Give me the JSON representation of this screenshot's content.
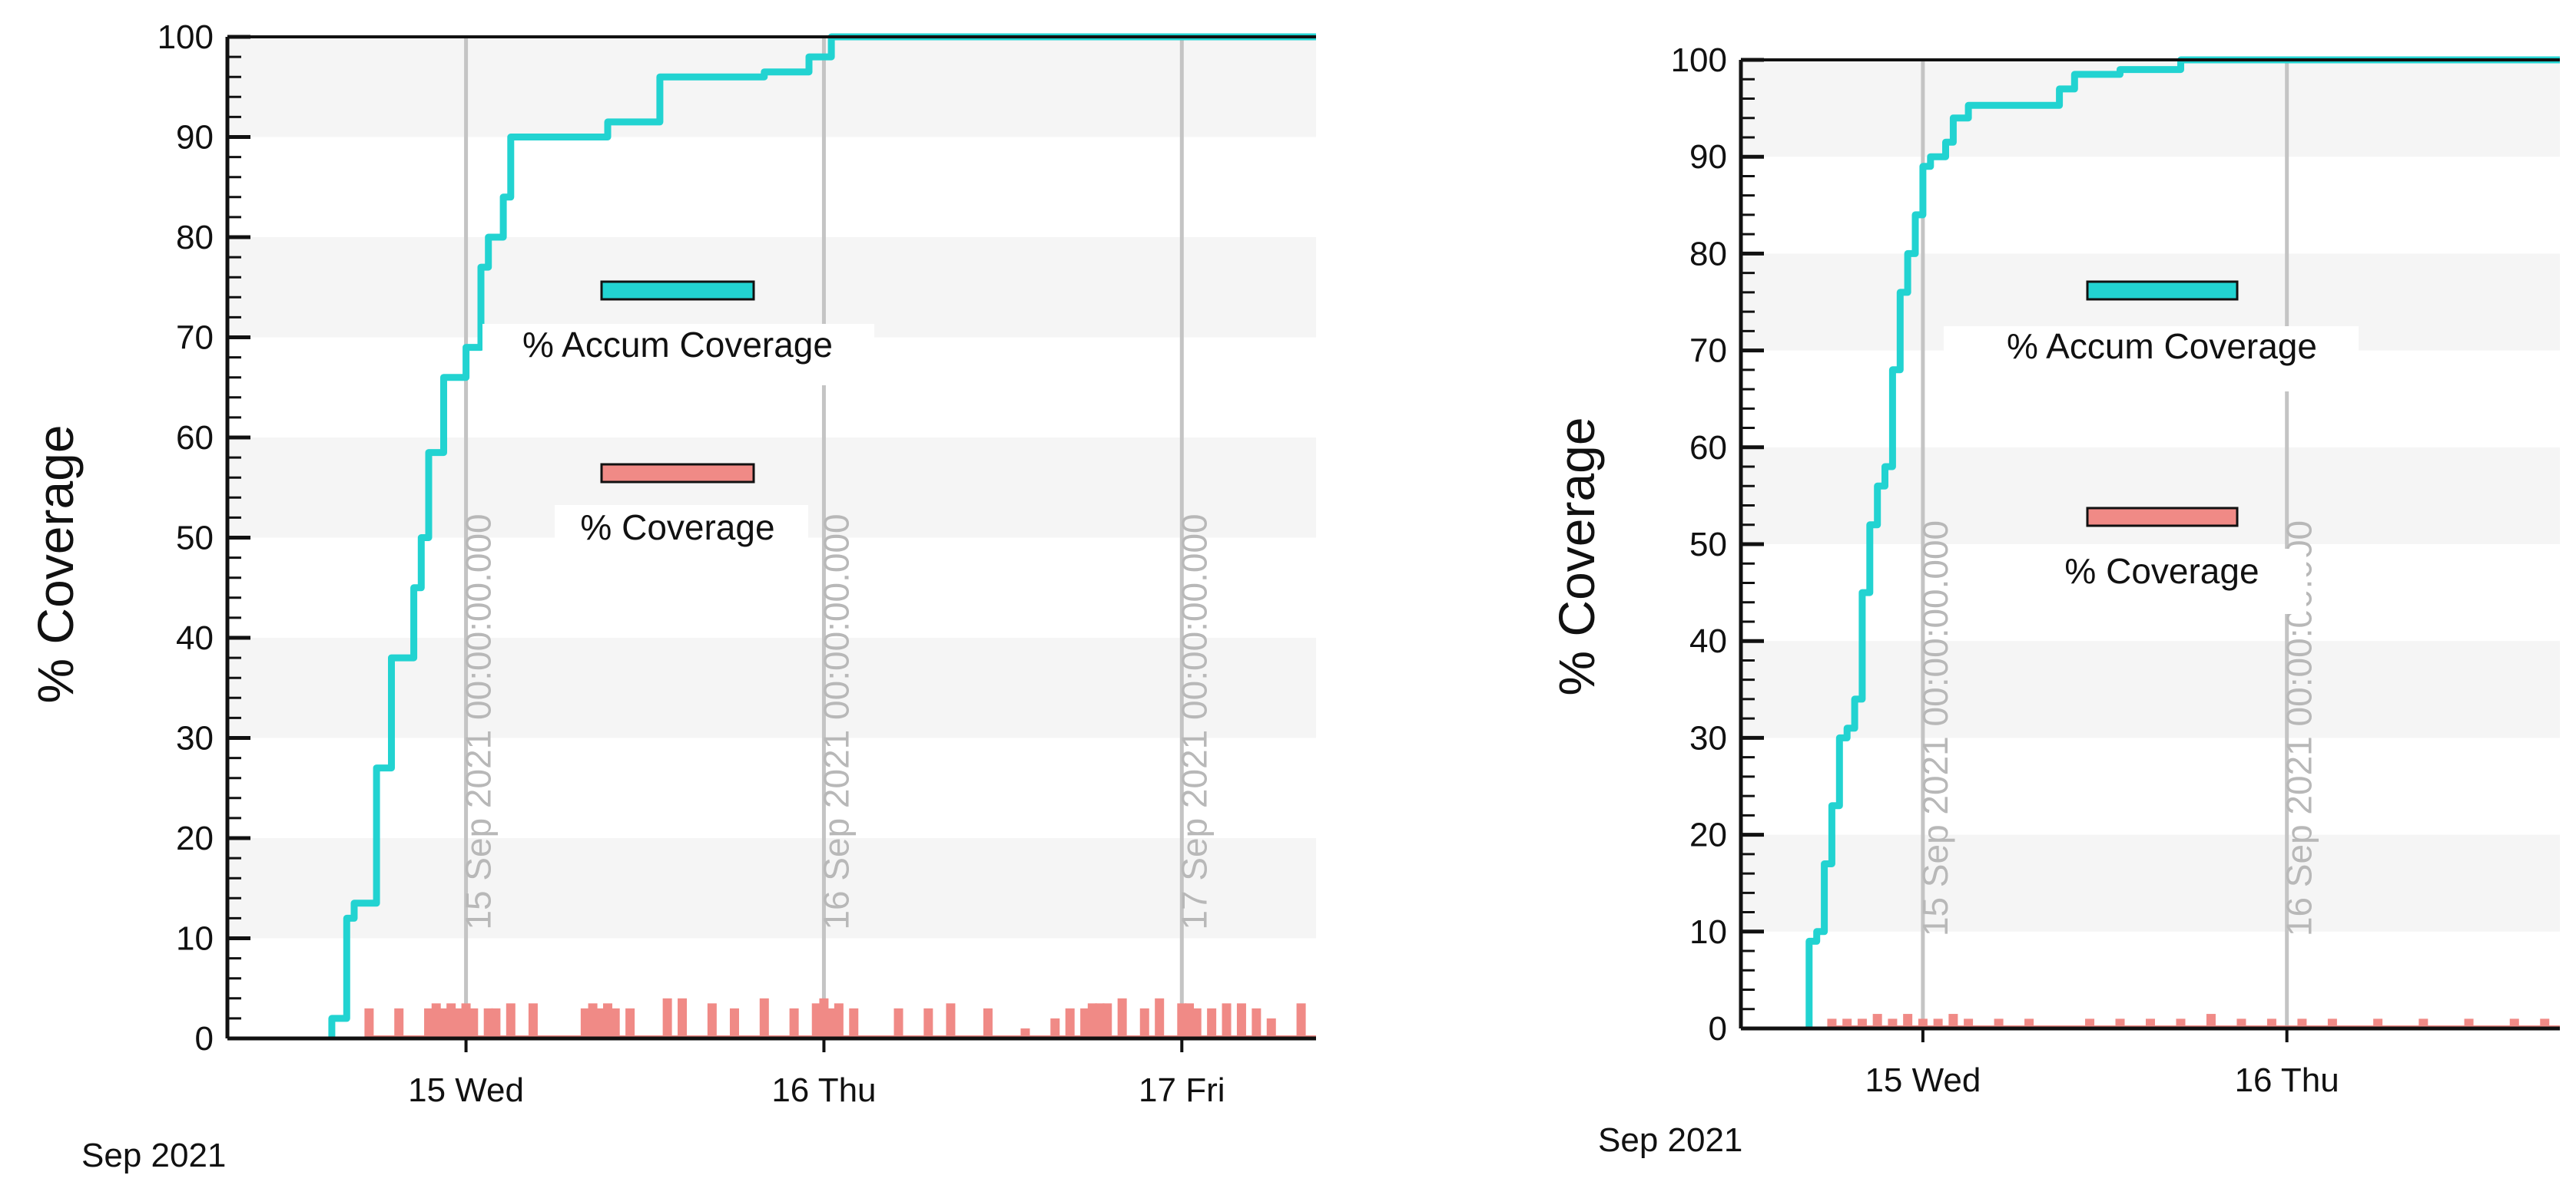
{
  "colors": {
    "accum": "#22d3d1",
    "coverage": "#f08a86",
    "band": "#f5f5f5",
    "vline": "#c4c4c4",
    "axis": "#111111",
    "vline_text": "#b8b8b8"
  },
  "chart_data": [
    {
      "type": "line",
      "ylabel": "% Coverage",
      "xlabel": "",
      "ylim": [
        0,
        100
      ],
      "y_ticks": [
        "0",
        "10",
        "20",
        "30",
        "40",
        "50",
        "60",
        "70",
        "80",
        "90",
        "100"
      ],
      "x_domain": [
        "2021-09-14T08:00",
        "2021-09-17T09:00"
      ],
      "x_ticks": [
        {
          "t": "2021-09-15T00:00",
          "label": "15 Wed"
        },
        {
          "t": "2021-09-16T00:00",
          "label": "16 Thu"
        },
        {
          "t": "2021-09-17T00:00",
          "label": "17 Fri"
        }
      ],
      "x_group_label": "Sep 2021",
      "date_lines": [
        {
          "t": "2021-09-15T00:00",
          "label": "15 Sep 2021 00:00:00.000"
        },
        {
          "t": "2021-09-16T00:00",
          "label": "16 Sep 2021 00:00:00.000"
        },
        {
          "t": "2021-09-17T00:00",
          "label": "17 Sep 2021 00:00:00.000"
        }
      ],
      "grid": "alternating horizontal bands",
      "legend_placement": "center",
      "series": [
        {
          "name": "% Accum Coverage",
          "style": "step-line",
          "points": [
            [
              "2021-09-14T15:00",
              0
            ],
            [
              "2021-09-14T15:00",
              2
            ],
            [
              "2021-09-14T16:00",
              2
            ],
            [
              "2021-09-14T16:00",
              12
            ],
            [
              "2021-09-14T16:30",
              12
            ],
            [
              "2021-09-14T16:30",
              13.5
            ],
            [
              "2021-09-14T18:00",
              13.5
            ],
            [
              "2021-09-14T18:00",
              27
            ],
            [
              "2021-09-14T19:00",
              27
            ],
            [
              "2021-09-14T19:00",
              38
            ],
            [
              "2021-09-14T20:30",
              38
            ],
            [
              "2021-09-14T20:30",
              45
            ],
            [
              "2021-09-14T21:00",
              45
            ],
            [
              "2021-09-14T21:00",
              50
            ],
            [
              "2021-09-14T21:30",
              50
            ],
            [
              "2021-09-14T21:30",
              58.5
            ],
            [
              "2021-09-14T22:30",
              58.5
            ],
            [
              "2021-09-14T22:30",
              66
            ],
            [
              "2021-09-15T00:00",
              66
            ],
            [
              "2021-09-15T00:00",
              69
            ],
            [
              "2021-09-15T01:00",
              69
            ],
            [
              "2021-09-15T01:00",
              77
            ],
            [
              "2021-09-15T01:30",
              77
            ],
            [
              "2021-09-15T01:30",
              80
            ],
            [
              "2021-09-15T02:30",
              80
            ],
            [
              "2021-09-15T02:30",
              84
            ],
            [
              "2021-09-15T03:00",
              84
            ],
            [
              "2021-09-15T03:00",
              90
            ],
            [
              "2021-09-15T09:30",
              90
            ],
            [
              "2021-09-15T09:30",
              91.5
            ],
            [
              "2021-09-15T13:00",
              91.5
            ],
            [
              "2021-09-15T13:00",
              96
            ],
            [
              "2021-09-15T20:00",
              96
            ],
            [
              "2021-09-15T20:00",
              96.5
            ],
            [
              "2021-09-15T23:00",
              96.5
            ],
            [
              "2021-09-15T23:00",
              98
            ],
            [
              "2021-09-16T00:30",
              98
            ],
            [
              "2021-09-16T00:30",
              100
            ],
            [
              "2021-09-17T09:00",
              100
            ]
          ]
        },
        {
          "name": "% Coverage",
          "style": "bars",
          "bars": [
            [
              "2021-09-14T17:30",
              3
            ],
            [
              "2021-09-14T19:30",
              3
            ],
            [
              "2021-09-14T21:30",
              3
            ],
            [
              "2021-09-14T22:00",
              3.5
            ],
            [
              "2021-09-14T22:30",
              3
            ],
            [
              "2021-09-14T23:00",
              3.5
            ],
            [
              "2021-09-14T23:30",
              3
            ],
            [
              "2021-09-15T00:00",
              3.5
            ],
            [
              "2021-09-15T00:30",
              3
            ],
            [
              "2021-09-15T01:30",
              3
            ],
            [
              "2021-09-15T02:00",
              3
            ],
            [
              "2021-09-15T03:00",
              3.5
            ],
            [
              "2021-09-15T04:30",
              3.5
            ],
            [
              "2021-09-15T08:00",
              3
            ],
            [
              "2021-09-15T08:30",
              3.5
            ],
            [
              "2021-09-15T09:00",
              3
            ],
            [
              "2021-09-15T09:30",
              3.5
            ],
            [
              "2021-09-15T10:00",
              3
            ],
            [
              "2021-09-15T11:00",
              3
            ],
            [
              "2021-09-15T13:30",
              4
            ],
            [
              "2021-09-15T14:30",
              4
            ],
            [
              "2021-09-15T16:30",
              3.5
            ],
            [
              "2021-09-15T18:00",
              3
            ],
            [
              "2021-09-15T20:00",
              4
            ],
            [
              "2021-09-15T22:00",
              3
            ],
            [
              "2021-09-15T23:30",
              3.5
            ],
            [
              "2021-09-16T00:00",
              4
            ],
            [
              "2021-09-16T00:30",
              3
            ],
            [
              "2021-09-16T01:00",
              3.5
            ],
            [
              "2021-09-16T02:00",
              3
            ],
            [
              "2021-09-16T05:00",
              3
            ],
            [
              "2021-09-16T07:00",
              3
            ],
            [
              "2021-09-16T08:30",
              3.5
            ],
            [
              "2021-09-16T11:00",
              3
            ],
            [
              "2021-09-16T13:30",
              1
            ],
            [
              "2021-09-16T15:30",
              2
            ],
            [
              "2021-09-16T16:30",
              3
            ],
            [
              "2021-09-16T17:30",
              3
            ],
            [
              "2021-09-16T18:00",
              3.5
            ],
            [
              "2021-09-16T18:30",
              3.5
            ],
            [
              "2021-09-16T19:00",
              3.5
            ],
            [
              "2021-09-16T20:00",
              4
            ],
            [
              "2021-09-16T21:30",
              3
            ],
            [
              "2021-09-16T22:30",
              4
            ],
            [
              "2021-09-17T00:00",
              3.5
            ],
            [
              "2021-09-17T00:30",
              3.5
            ],
            [
              "2021-09-17T01:00",
              3
            ],
            [
              "2021-09-17T02:00",
              3
            ],
            [
              "2021-09-17T03:00",
              3.5
            ],
            [
              "2021-09-17T04:00",
              3.5
            ],
            [
              "2021-09-17T05:00",
              3
            ],
            [
              "2021-09-17T06:00",
              2
            ],
            [
              "2021-09-17T08:00",
              3.5
            ]
          ]
        }
      ]
    },
    {
      "type": "line",
      "ylabel": "% Coverage",
      "xlabel": "",
      "ylim": [
        0,
        100
      ],
      "y_ticks": [
        "0",
        "10",
        "20",
        "30",
        "40",
        "50",
        "60",
        "70",
        "80",
        "90",
        "100"
      ],
      "x_domain": [
        "2021-09-14T12:00",
        "2021-09-16T18:00"
      ],
      "x_ticks": [
        {
          "t": "2021-09-15T00:00",
          "label": "15 Wed"
        },
        {
          "t": "2021-09-16T00:00",
          "label": "16 Thu"
        }
      ],
      "x_group_label": "Sep 2021",
      "date_lines": [
        {
          "t": "2021-09-15T00:00",
          "label": "15 Sep 2021 00:00:00.000"
        },
        {
          "t": "2021-09-16T00:00",
          "label": "16 Sep 2021 00:00:00.000"
        }
      ],
      "grid": "alternating horizontal bands",
      "legend_placement": "center",
      "series": [
        {
          "name": "% Accum Coverage",
          "style": "step-line",
          "points": [
            [
              "2021-09-14T16:30",
              0
            ],
            [
              "2021-09-14T16:30",
              9
            ],
            [
              "2021-09-14T17:00",
              9
            ],
            [
              "2021-09-14T17:00",
              10
            ],
            [
              "2021-09-14T17:30",
              10
            ],
            [
              "2021-09-14T17:30",
              17
            ],
            [
              "2021-09-14T18:00",
              17
            ],
            [
              "2021-09-14T18:00",
              23
            ],
            [
              "2021-09-14T18:30",
              23
            ],
            [
              "2021-09-14T18:30",
              30
            ],
            [
              "2021-09-14T19:00",
              30
            ],
            [
              "2021-09-14T19:00",
              31
            ],
            [
              "2021-09-14T19:30",
              31
            ],
            [
              "2021-09-14T19:30",
              34
            ],
            [
              "2021-09-14T20:00",
              34
            ],
            [
              "2021-09-14T20:00",
              45
            ],
            [
              "2021-09-14T20:30",
              45
            ],
            [
              "2021-09-14T20:30",
              52
            ],
            [
              "2021-09-14T21:00",
              52
            ],
            [
              "2021-09-14T21:00",
              56
            ],
            [
              "2021-09-14T21:30",
              56
            ],
            [
              "2021-09-14T21:30",
              58
            ],
            [
              "2021-09-14T22:00",
              58
            ],
            [
              "2021-09-14T22:00",
              68
            ],
            [
              "2021-09-14T22:30",
              68
            ],
            [
              "2021-09-14T22:30",
              76
            ],
            [
              "2021-09-14T23:00",
              76
            ],
            [
              "2021-09-14T23:00",
              80
            ],
            [
              "2021-09-14T23:30",
              80
            ],
            [
              "2021-09-14T23:30",
              84
            ],
            [
              "2021-09-15T00:00",
              84
            ],
            [
              "2021-09-15T00:00",
              89
            ],
            [
              "2021-09-15T00:30",
              89
            ],
            [
              "2021-09-15T00:30",
              90
            ],
            [
              "2021-09-15T01:30",
              90
            ],
            [
              "2021-09-15T01:30",
              91.5
            ],
            [
              "2021-09-15T02:00",
              91.5
            ],
            [
              "2021-09-15T02:00",
              94
            ],
            [
              "2021-09-15T03:00",
              94
            ],
            [
              "2021-09-15T03:00",
              95.3
            ],
            [
              "2021-09-15T09:00",
              95.3
            ],
            [
              "2021-09-15T09:00",
              97
            ],
            [
              "2021-09-15T10:00",
              97
            ],
            [
              "2021-09-15T10:00",
              98.5
            ],
            [
              "2021-09-15T13:00",
              98.5
            ],
            [
              "2021-09-15T13:00",
              99
            ],
            [
              "2021-09-15T17:00",
              99
            ],
            [
              "2021-09-15T17:00",
              100
            ],
            [
              "2021-09-16T18:00",
              100
            ]
          ]
        },
        {
          "name": "% Coverage",
          "style": "bars",
          "bars": [
            [
              "2021-09-14T18:00",
              1
            ],
            [
              "2021-09-14T19:00",
              1
            ],
            [
              "2021-09-14T20:00",
              1
            ],
            [
              "2021-09-14T21:00",
              1.5
            ],
            [
              "2021-09-14T22:00",
              1
            ],
            [
              "2021-09-14T23:00",
              1.5
            ],
            [
              "2021-09-15T00:00",
              1
            ],
            [
              "2021-09-15T01:00",
              1
            ],
            [
              "2021-09-15T02:00",
              1.5
            ],
            [
              "2021-09-15T03:00",
              1
            ],
            [
              "2021-09-15T05:00",
              1
            ],
            [
              "2021-09-15T07:00",
              1
            ],
            [
              "2021-09-15T11:00",
              1
            ],
            [
              "2021-09-15T13:00",
              1
            ],
            [
              "2021-09-15T15:00",
              1
            ],
            [
              "2021-09-15T17:00",
              1
            ],
            [
              "2021-09-15T19:00",
              1.5
            ],
            [
              "2021-09-15T21:00",
              1
            ],
            [
              "2021-09-15T23:00",
              1
            ],
            [
              "2021-09-16T01:00",
              1
            ],
            [
              "2021-09-16T03:00",
              1
            ],
            [
              "2021-09-16T06:00",
              1
            ],
            [
              "2021-09-16T09:00",
              1
            ],
            [
              "2021-09-16T12:00",
              1
            ],
            [
              "2021-09-16T15:00",
              1
            ],
            [
              "2021-09-16T17:00",
              1
            ]
          ]
        }
      ]
    }
  ]
}
